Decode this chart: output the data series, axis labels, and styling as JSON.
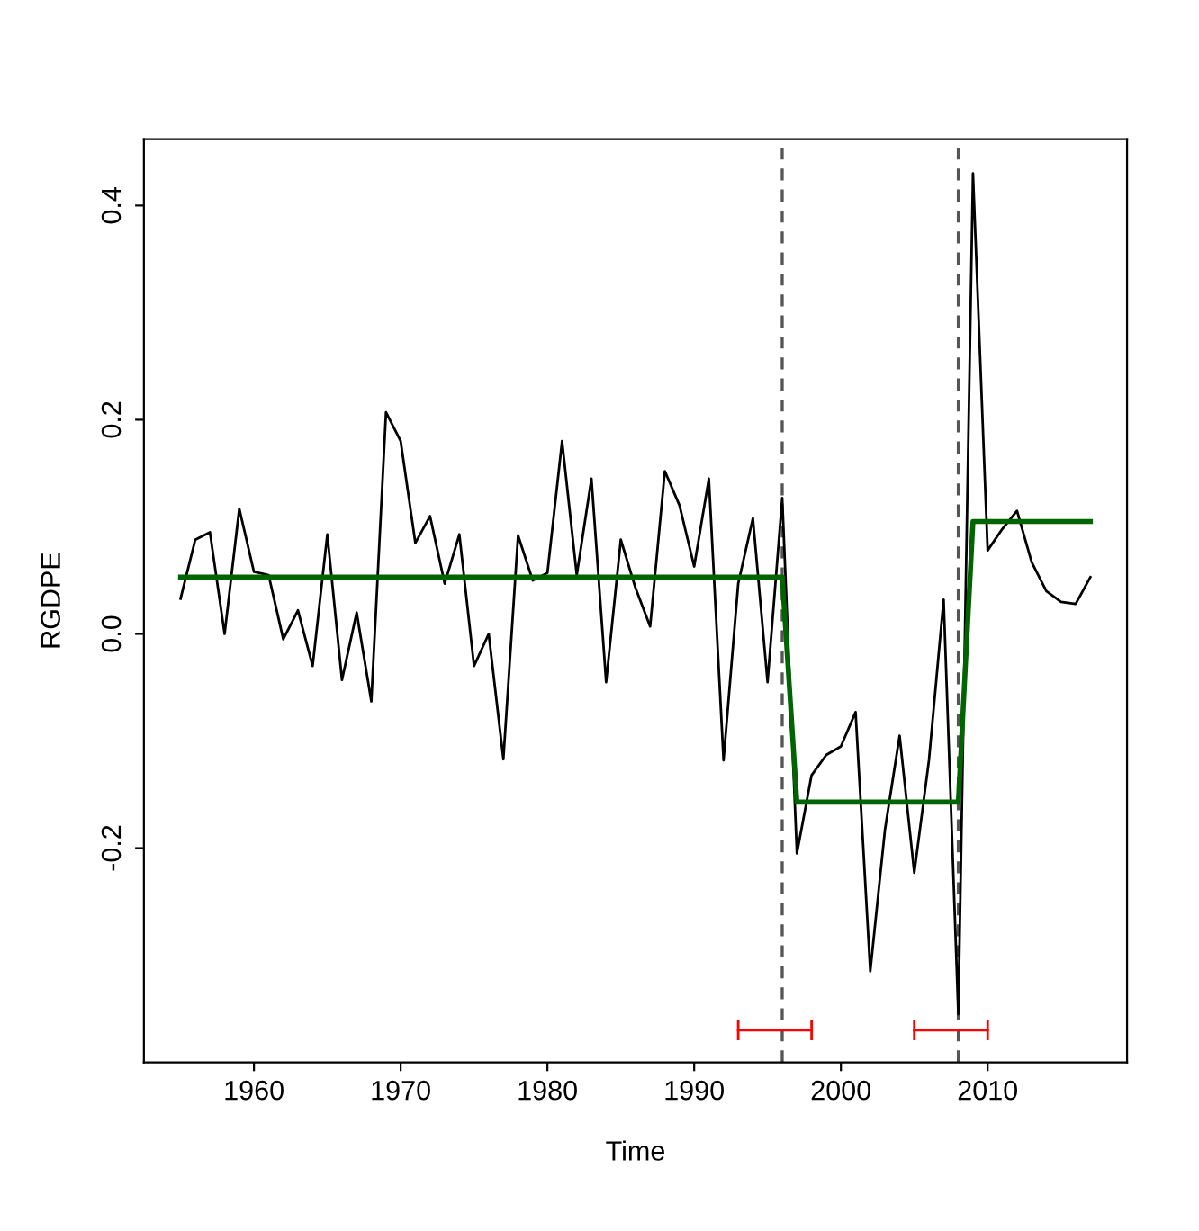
{
  "chart_data": {
    "type": "line",
    "xlabel": "Time",
    "ylabel": "RGDPE",
    "series": [
      {
        "color": "#000000",
        "x": [
          1955,
          1956,
          1957,
          1958,
          1959,
          1960,
          1961,
          1962,
          1963,
          1964,
          1965,
          1966,
          1967,
          1968,
          1969,
          1970,
          1971,
          1972,
          1973,
          1974,
          1975,
          1976,
          1977,
          1978,
          1979,
          1980,
          1981,
          1982,
          1983,
          1984,
          1985,
          1986,
          1987,
          1988,
          1989,
          1990,
          1991,
          1992,
          1993,
          1994,
          1995,
          1996,
          1997,
          1998,
          1999,
          2000,
          2001,
          2002,
          2003,
          2004,
          2005,
          2006,
          2007,
          2008,
          2009,
          2010,
          2011,
          2012,
          2013,
          2014,
          2015,
          2016,
          2017
        ],
        "values": [
          0.033,
          0.088,
          0.095,
          0.0,
          0.117,
          0.058,
          0.055,
          -0.005,
          0.022,
          -0.03,
          0.093,
          -0.043,
          0.02,
          -0.063,
          0.207,
          0.18,
          0.085,
          0.11,
          0.047,
          0.093,
          -0.03,
          0.0,
          -0.117,
          0.092,
          0.05,
          0.057,
          0.18,
          0.055,
          0.145,
          -0.045,
          0.088,
          0.043,
          0.007,
          0.152,
          0.12,
          0.063,
          0.145,
          -0.118,
          0.047,
          0.108,
          -0.045,
          0.127,
          -0.205,
          -0.132,
          -0.113,
          -0.105,
          -0.073,
          -0.315,
          -0.183,
          -0.095,
          -0.223,
          -0.118,
          0.032,
          -0.355,
          0.43,
          0.078,
          0.098,
          0.115,
          0.067,
          0.04,
          0.03,
          0.028,
          0.053
        ]
      },
      {
        "color": "#006400",
        "x": [
          1955,
          1996,
          1997,
          2008,
          2009,
          2017
        ],
        "values": [
          0.053,
          0.053,
          -0.157,
          -0.157,
          0.105,
          0.105
        ]
      },
      {
        "color": "#ff0000",
        "x": [
          1993,
          1998
        ],
        "values": [
          -0.37,
          -0.37
        ]
      },
      {
        "color": "#ff0000",
        "x": [
          2005,
          2010
        ],
        "values": [
          -0.37,
          -0.37
        ]
      }
    ],
    "ref_lines": [
      {
        "axis": "x",
        "value": 1996,
        "color": "#555555",
        "line_style": "dashed"
      },
      {
        "axis": "x",
        "value": 2008,
        "color": "#555555",
        "line_style": "dashed"
      }
    ],
    "xlim": [
      1952.5,
      2019.5
    ],
    "ylim": [
      -0.4,
      0.462
    ],
    "xticks": [
      1960,
      1970,
      1980,
      1990,
      2000,
      2010
    ],
    "yticks": [
      {
        "value": -0.2,
        "label": "-0.2"
      },
      {
        "value": 0.0,
        "label": "0.0"
      },
      {
        "value": 0.2,
        "label": "0.2"
      },
      {
        "value": 0.4,
        "label": "0.4"
      }
    ],
    "grid": false,
    "legend": false
  }
}
